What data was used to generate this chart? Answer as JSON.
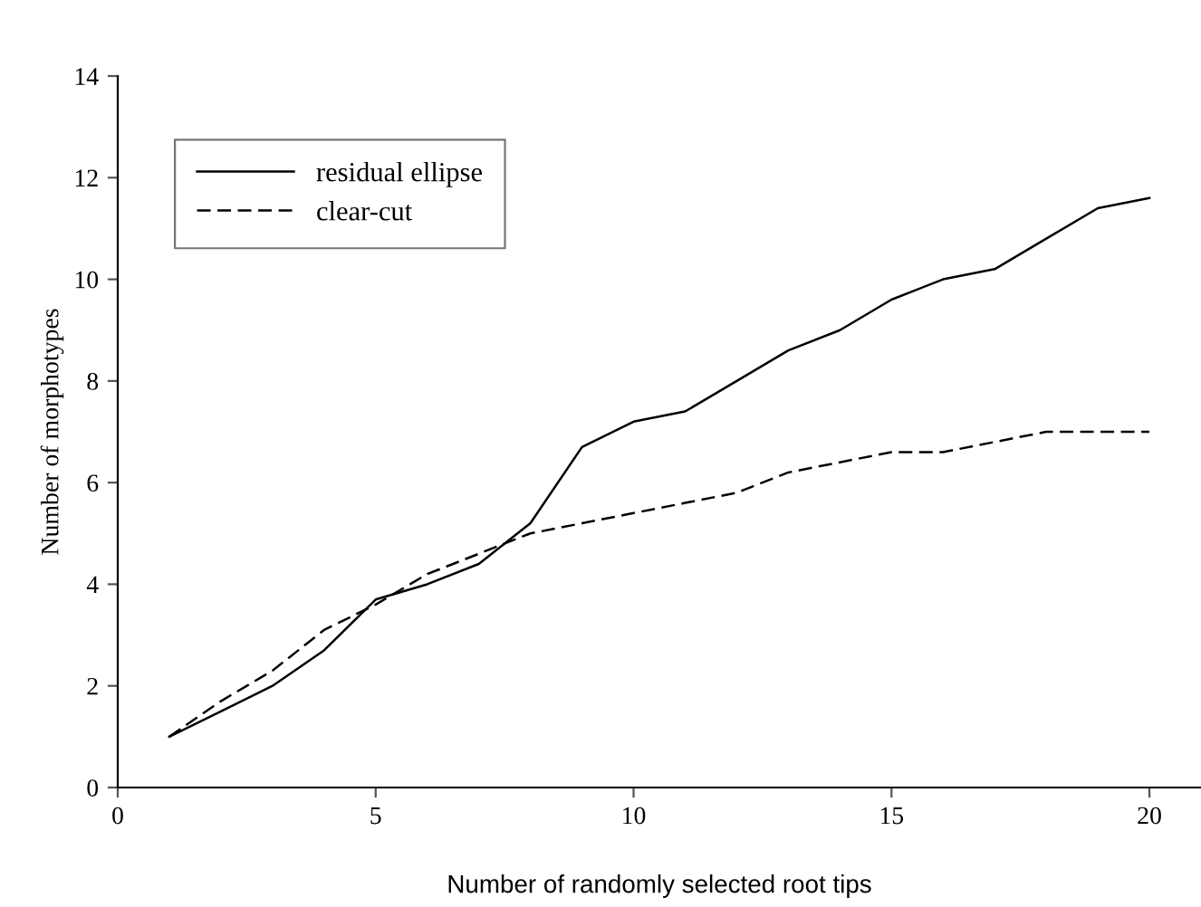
{
  "chart_data": {
    "type": "line",
    "xlabel": "Number of randomly selected root tips",
    "ylabel": "Number of morphotypes",
    "x": [
      1,
      2,
      3,
      4,
      5,
      6,
      7,
      8,
      9,
      10,
      11,
      12,
      13,
      14,
      15,
      16,
      17,
      18,
      19,
      20
    ],
    "series": [
      {
        "name": "residual ellipse",
        "color": "#000000",
        "line_style": "solid",
        "values": [
          1,
          1.5,
          2.0,
          2.7,
          3.7,
          4.0,
          4.4,
          5.2,
          6.7,
          7.2,
          7.4,
          8.0,
          8.6,
          9.0,
          9.6,
          10.0,
          10.2,
          10.8,
          11.4,
          11.6
        ]
      },
      {
        "name": "clear-cut",
        "color": "#000000",
        "line_style": "dashed",
        "values": [
          1,
          1.7,
          2.3,
          3.1,
          3.6,
          4.2,
          4.6,
          5.0,
          5.2,
          5.4,
          5.6,
          5.8,
          6.2,
          6.4,
          6.6,
          6.6,
          6.8,
          7.0,
          7.0,
          7.0
        ]
      }
    ],
    "xlim": [
      0,
      21
    ],
    "xticks": [
      0,
      5,
      10,
      15,
      20
    ],
    "ylim": [
      0,
      14
    ],
    "yticks": [
      0,
      2,
      4,
      6,
      8,
      10,
      12,
      14
    ],
    "legend": "top left",
    "grid": false,
    "marker": "none"
  }
}
